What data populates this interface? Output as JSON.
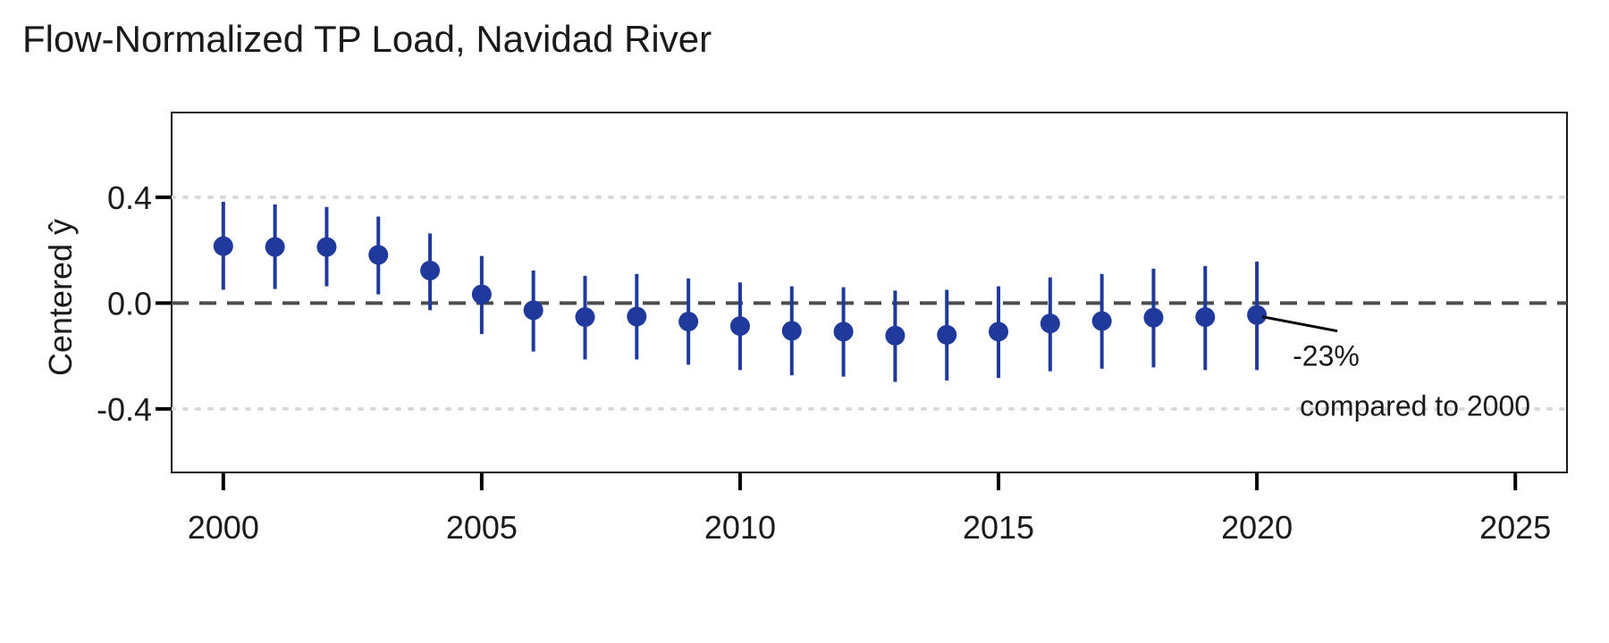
{
  "chart_data": {
    "type": "scatter",
    "title": "Flow-Normalized TP Load, Navidad River",
    "xlabel": "",
    "ylabel": "Centered ŷ",
    "xlim": [
      1999,
      2026
    ],
    "ylim": [
      -0.64,
      0.72
    ],
    "xticks": [
      2000,
      2005,
      2010,
      2015,
      2020,
      2025
    ],
    "xtick_labels": [
      "2000",
      "2005",
      "2010",
      "2015",
      "2020",
      "2025"
    ],
    "yticks": [
      0.4,
      0.0,
      -0.4
    ],
    "ytick_labels": [
      "0.4",
      "0.0",
      "-0.4"
    ],
    "grid": "dotted horizontal at y ticks",
    "reference_line": 0.0,
    "colors": {
      "points": "#1f3a9c",
      "reference": "#4d4d4d",
      "grid": "#d9d9d9"
    },
    "series": [
      {
        "x": [
          2000,
          2001,
          2002,
          2003,
          2004,
          2005,
          2006,
          2007,
          2008,
          2009,
          2010,
          2011,
          2012,
          2013,
          2014,
          2015,
          2016,
          2017,
          2018,
          2019,
          2020
        ],
        "y": [
          0.215,
          0.212,
          0.212,
          0.182,
          0.123,
          0.033,
          -0.027,
          -0.053,
          -0.051,
          -0.07,
          -0.087,
          -0.105,
          -0.108,
          -0.123,
          -0.12,
          -0.108,
          -0.077,
          -0.068,
          -0.055,
          -0.053,
          -0.045
        ],
        "lower": [
          0.05,
          0.053,
          0.063,
          0.033,
          -0.027,
          -0.117,
          -0.183,
          -0.213,
          -0.213,
          -0.233,
          -0.253,
          -0.273,
          -0.278,
          -0.298,
          -0.293,
          -0.283,
          -0.258,
          -0.248,
          -0.243,
          -0.253,
          -0.253
        ],
        "upper": [
          0.383,
          0.373,
          0.363,
          0.327,
          0.263,
          0.178,
          0.123,
          0.103,
          0.11,
          0.093,
          0.078,
          0.063,
          0.06,
          0.047,
          0.05,
          0.063,
          0.097,
          0.11,
          0.13,
          0.14,
          0.157
        ]
      }
    ],
    "annotations": [
      {
        "x": 2020,
        "y": -0.045,
        "text": "-23%",
        "subtext": "compared to 2000"
      }
    ]
  }
}
